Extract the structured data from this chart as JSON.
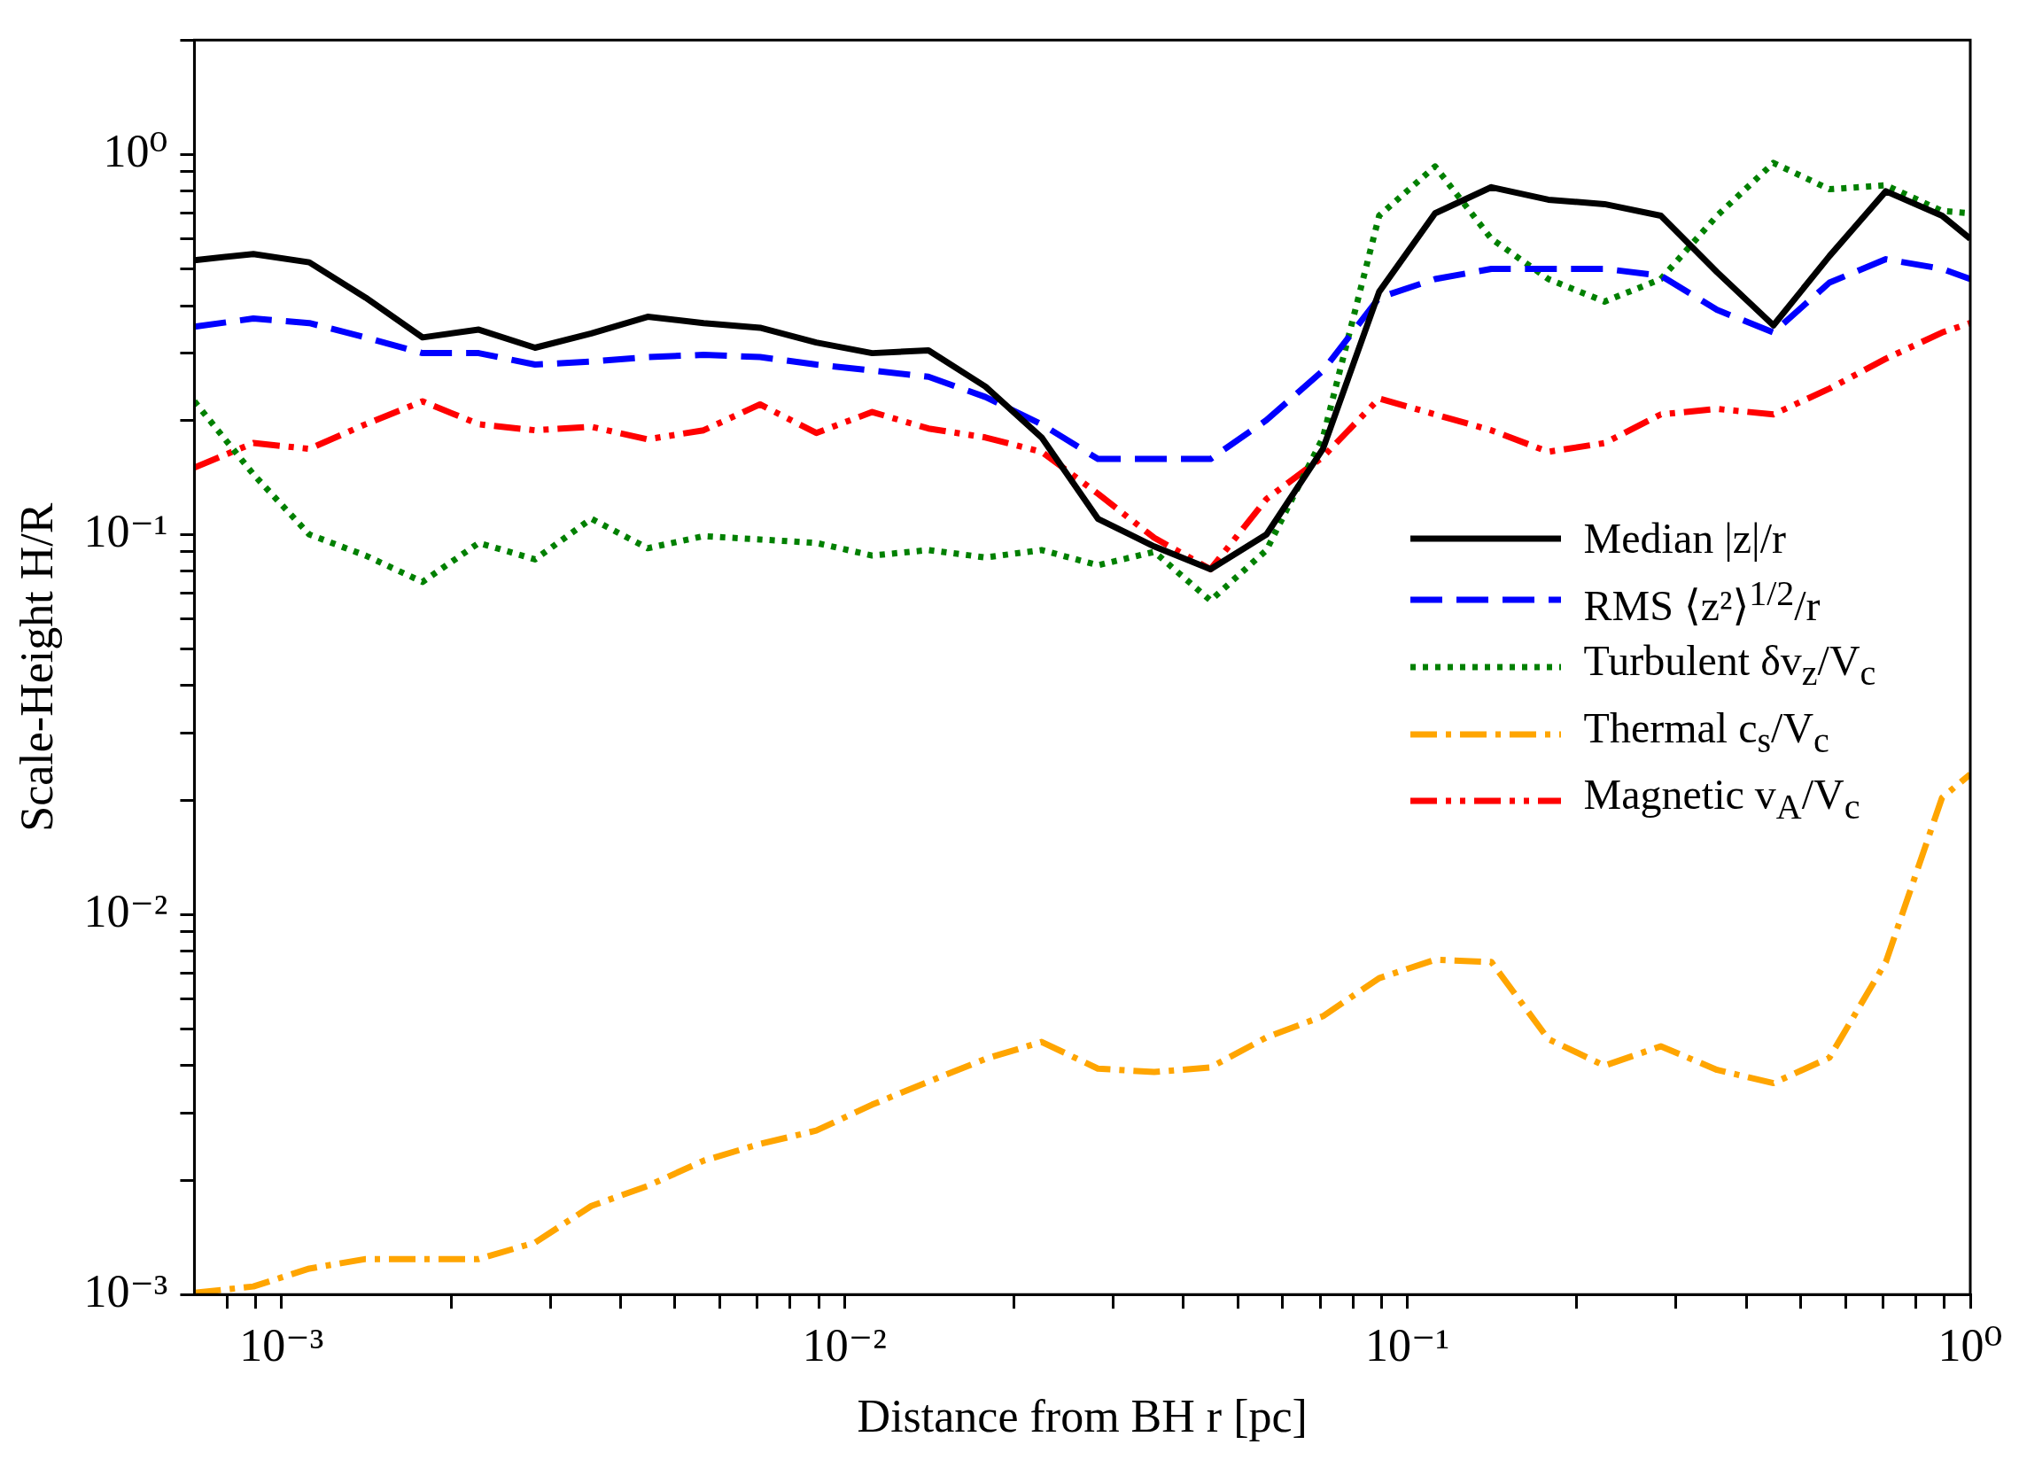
{
  "chart_data": {
    "type": "line",
    "xlabel": "Distance from BH r [pc]",
    "ylabel": "Scale-Height H/R",
    "log": "xy",
    "grid": false,
    "legend": "bottom right",
    "marker": "none",
    "x": [
      0.0007,
      0.000891,
      0.00112,
      0.00141,
      0.00178,
      0.00224,
      0.00282,
      0.00355,
      0.00447,
      0.00562,
      0.00708,
      0.00891,
      0.0112,
      0.0141,
      0.0178,
      0.0224,
      0.0282,
      0.0355,
      0.0447,
      0.0562,
      0.0708,
      0.0891,
      0.112,
      0.141,
      0.178,
      0.224,
      0.282,
      0.355,
      0.447,
      0.562,
      0.708,
      0.891,
      1
    ],
    "xlim": [
      0.0007,
      1
    ],
    "xticks": [
      {
        "value": 0.0008,
        "label": null
      },
      {
        "value": 0.0009,
        "label": null
      },
      {
        "value": 0.001,
        "label": "10⁻³"
      },
      {
        "value": 0.002,
        "label": null
      },
      {
        "value": 0.003,
        "label": null
      },
      {
        "value": 0.004,
        "label": null
      },
      {
        "value": 0.005,
        "label": null
      },
      {
        "value": 0.006,
        "label": null
      },
      {
        "value": 0.007,
        "label": null
      },
      {
        "value": 0.008,
        "label": null
      },
      {
        "value": 0.009,
        "label": null
      },
      {
        "value": 0.01,
        "label": "10⁻²"
      },
      {
        "value": 0.02,
        "label": null
      },
      {
        "value": 0.03,
        "label": null
      },
      {
        "value": 0.04,
        "label": null
      },
      {
        "value": 0.05,
        "label": null
      },
      {
        "value": 0.06,
        "label": null
      },
      {
        "value": 0.07,
        "label": null
      },
      {
        "value": 0.08,
        "label": null
      },
      {
        "value": 0.09,
        "label": null
      },
      {
        "value": 0.1,
        "label": "10⁻¹"
      },
      {
        "value": 0.2,
        "label": null
      },
      {
        "value": 0.3,
        "label": null
      },
      {
        "value": 0.4,
        "label": null
      },
      {
        "value": 0.5,
        "label": null
      },
      {
        "value": 0.6,
        "label": null
      },
      {
        "value": 0.7,
        "label": null
      },
      {
        "value": 0.8,
        "label": null
      },
      {
        "value": 0.9,
        "label": null
      },
      {
        "value": 1,
        "label": "10⁰"
      }
    ],
    "ylim": [
      0.001,
      2
    ],
    "yticks": [
      {
        "value": 0.001,
        "label": "10⁻³"
      },
      {
        "value": 0.002,
        "label": null
      },
      {
        "value": 0.003,
        "label": null
      },
      {
        "value": 0.004,
        "label": null
      },
      {
        "value": 0.005,
        "label": null
      },
      {
        "value": 0.006,
        "label": null
      },
      {
        "value": 0.007,
        "label": null
      },
      {
        "value": 0.008,
        "label": null
      },
      {
        "value": 0.009,
        "label": null
      },
      {
        "value": 0.01,
        "label": "10⁻²"
      },
      {
        "value": 0.02,
        "label": null
      },
      {
        "value": 0.03,
        "label": null
      },
      {
        "value": 0.04,
        "label": null
      },
      {
        "value": 0.05,
        "label": null
      },
      {
        "value": 0.06,
        "label": null
      },
      {
        "value": 0.07,
        "label": null
      },
      {
        "value": 0.08,
        "label": null
      },
      {
        "value": 0.09,
        "label": null
      },
      {
        "value": 0.1,
        "label": "10⁻¹"
      },
      {
        "value": 0.2,
        "label": null
      },
      {
        "value": 0.3,
        "label": null
      },
      {
        "value": 0.4,
        "label": null
      },
      {
        "value": 0.5,
        "label": null
      },
      {
        "value": 0.6,
        "label": null
      },
      {
        "value": 0.7,
        "label": null
      },
      {
        "value": 0.8,
        "label": null
      },
      {
        "value": 0.9,
        "label": null
      },
      {
        "value": 1,
        "label": "10⁰"
      },
      {
        "value": 2,
        "label": null
      }
    ],
    "series": [
      {
        "name": "Median |z|/r",
        "color": "#000000",
        "line_style": "solid",
        "values": [
          0.527,
          0.547,
          0.52,
          0.42,
          0.33,
          0.346,
          0.31,
          0.338,
          0.374,
          0.36,
          0.35,
          0.32,
          0.3,
          0.305,
          0.245,
          0.18,
          0.11,
          0.093,
          0.081,
          0.1,
          0.168,
          0.435,
          0.7,
          0.82,
          0.76,
          0.74,
          0.69,
          0.49,
          0.355,
          0.54,
          0.8,
          0.69,
          0.6
        ]
      },
      {
        "name": "RMS ⟨z²⟩$^{1/2}$/r",
        "color": "#0000ff",
        "line_style": "dashed",
        "values": [
          0.352,
          0.37,
          0.36,
          0.33,
          0.3,
          0.3,
          0.28,
          0.285,
          0.293,
          0.297,
          0.293,
          0.28,
          0.27,
          0.26,
          0.23,
          0.195,
          0.158,
          0.158,
          0.158,
          0.2,
          0.27,
          0.42,
          0.47,
          0.5,
          0.5,
          0.5,
          0.48,
          0.39,
          0.34,
          0.46,
          0.53,
          0.5,
          0.47
        ]
      },
      {
        "name": "Turbulent δv$_{z}$/V$_{c}$",
        "color": "#008000",
        "line_style": "dotted",
        "values": [
          0.224,
          0.144,
          0.1,
          0.088,
          0.075,
          0.095,
          0.086,
          0.11,
          0.092,
          0.099,
          0.097,
          0.095,
          0.088,
          0.091,
          0.087,
          0.091,
          0.083,
          0.09,
          0.067,
          0.091,
          0.18,
          0.69,
          0.93,
          0.6,
          0.47,
          0.41,
          0.47,
          0.69,
          0.95,
          0.81,
          0.83,
          0.71,
          0.7
        ]
      },
      {
        "name": "Thermal c$_{s}$/V$_{c}$",
        "color": "#ffa500",
        "line_style": "dashdot",
        "values": [
          0.00101,
          0.00105,
          0.00117,
          0.00124,
          0.00124,
          0.00124,
          0.00137,
          0.00171,
          0.00193,
          0.00225,
          0.00249,
          0.0027,
          0.00316,
          0.00363,
          0.00417,
          0.00462,
          0.00393,
          0.00385,
          0.00396,
          0.00475,
          0.0054,
          0.0068,
          0.0076,
          0.0075,
          0.0047,
          0.004,
          0.0045,
          0.0039,
          0.0036,
          0.0042,
          0.0075,
          0.0203,
          0.0234
        ]
      },
      {
        "name": "Magnetic v$_{A}$/V$_{c}$",
        "color": "#ff0000",
        "line_style": "dashdotdot",
        "values": [
          0.15,
          0.174,
          0.168,
          0.195,
          0.224,
          0.195,
          0.188,
          0.192,
          0.178,
          0.188,
          0.22,
          0.185,
          0.21,
          0.19,
          0.18,
          0.165,
          0.128,
          0.098,
          0.081,
          0.124,
          0.16,
          0.228,
          0.207,
          0.188,
          0.165,
          0.174,
          0.207,
          0.214,
          0.207,
          0.242,
          0.29,
          0.34,
          0.36
        ]
      }
    ]
  }
}
